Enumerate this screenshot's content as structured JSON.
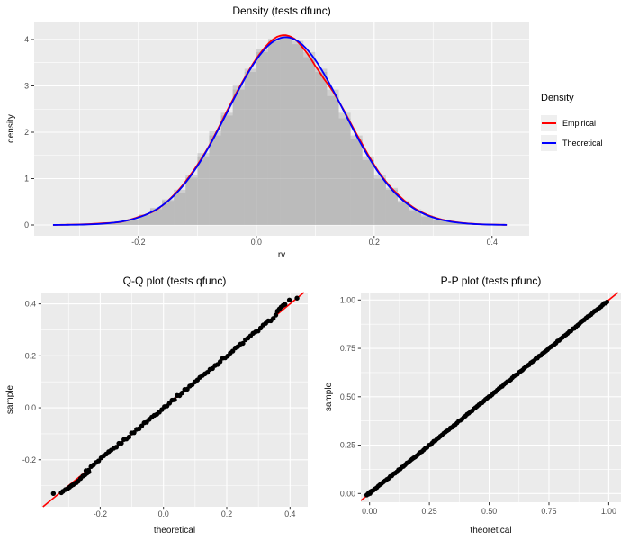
{
  "colors": {
    "page_bg": "#FFFFFF",
    "panel_bg": "#EBEBEB",
    "grid_major": "#FFFFFF",
    "grid_minor": "#FFFFFF",
    "tick_text": "#4D4D4D",
    "tick_mark": "#333333",
    "bar_fill": "#909090",
    "bar_opacity": 0.3,
    "empirical": "#FF0000",
    "theoretical": "#0000FF",
    "point": "#000000",
    "legend_key_bg": "#EFEFEF"
  },
  "chart_data": {
    "density": {
      "type": "histogram+line",
      "title": "Density (tests dfunc)",
      "xlabel": "rv",
      "ylabel": "density",
      "xlim": [
        -0.377,
        0.463
      ],
      "ylim": [
        -0.233,
        4.388
      ],
      "x_ticks": {
        "values": [
          -0.2,
          0.0,
          0.2,
          0.4
        ],
        "labels": [
          "-0.2",
          "0.0",
          "0.2",
          "0.4"
        ]
      },
      "y_ticks": {
        "values": [
          0,
          1,
          2,
          3,
          4
        ],
        "labels": [
          "0",
          "1",
          "2",
          "3",
          "4"
        ]
      },
      "x_minor": [
        -0.3,
        -0.1,
        0.1,
        0.3
      ],
      "y_minor": [
        0.5,
        1.5,
        2.5,
        3.5
      ],
      "histogram": {
        "bin_start": -0.34,
        "bin_width": 0.02,
        "empirical_heights": [
          0.005,
          0.01,
          0.02,
          0.02,
          0.05,
          0.08,
          0.11,
          0.23,
          0.37,
          0.55,
          0.7,
          1.02,
          1.55,
          2.02,
          2.36,
          3.02,
          3.3,
          3.8,
          4.02,
          4.08,
          3.9,
          3.62,
          3.3,
          2.78,
          2.3,
          1.85,
          1.4,
          1.0,
          0.8,
          0.48,
          0.3,
          0.18,
          0.11,
          0.06,
          0.05,
          0.02,
          0.01,
          0.01
        ],
        "theoretical_heights": [
          0.003,
          0.005,
          0.01,
          0.02,
          0.04,
          0.07,
          0.13,
          0.21,
          0.34,
          0.52,
          0.76,
          1.08,
          1.48,
          1.93,
          2.42,
          2.92,
          3.37,
          3.73,
          3.97,
          4.05,
          3.97,
          3.73,
          3.37,
          2.92,
          2.42,
          1.93,
          1.48,
          1.08,
          0.76,
          0.52,
          0.34,
          0.21,
          0.13,
          0.07,
          0.04,
          0.02,
          0.01,
          0.005
        ]
      },
      "curves": [
        {
          "name": "Empirical",
          "color": "#FF0000",
          "mean": 0.05,
          "sd": 0.0985,
          "peak": 4.05,
          "range": [
            -0.345,
            0.425
          ],
          "offsets": [
            [
              -0.345,
              0.0
            ],
            [
              -0.3,
              0.004
            ],
            [
              -0.26,
              0.01
            ],
            [
              -0.23,
              -0.006
            ],
            [
              -0.2,
              0.012
            ],
            [
              -0.17,
              -0.012
            ],
            [
              -0.14,
              0.015
            ],
            [
              -0.11,
              0.03
            ],
            [
              -0.08,
              0.015
            ],
            [
              -0.05,
              0.035
            ],
            [
              -0.02,
              0.02
            ],
            [
              0.01,
              0.03
            ],
            [
              0.035,
              0.055
            ],
            [
              0.05,
              0.045
            ],
            [
              0.065,
              0.01
            ],
            [
              0.08,
              -0.06
            ],
            [
              0.1,
              -0.13
            ],
            [
              0.115,
              -0.11
            ],
            [
              0.13,
              -0.03
            ],
            [
              0.15,
              0.02
            ],
            [
              0.18,
              0.04
            ],
            [
              0.21,
              0.02
            ],
            [
              0.24,
              0.03
            ],
            [
              0.27,
              0.015
            ],
            [
              0.3,
              0.01
            ],
            [
              0.34,
              0.005
            ],
            [
              0.38,
              0.002
            ],
            [
              0.425,
              0.0
            ]
          ]
        },
        {
          "name": "Theoretical",
          "color": "#0000FF",
          "mean": 0.05,
          "sd": 0.0985,
          "peak": 4.05,
          "range": [
            -0.345,
            0.425
          ]
        }
      ],
      "legend": {
        "title": "Density",
        "items": [
          {
            "label": "Empirical",
            "color": "#FF0000"
          },
          {
            "label": "Theoretical",
            "color": "#0000FF"
          }
        ]
      }
    },
    "qq": {
      "type": "scatter",
      "title": "Q-Q plot (tests qfunc)",
      "xlabel": "theoretical",
      "ylabel": "sample",
      "xlim": [
        -0.386,
        0.456
      ],
      "ylim": [
        -0.381,
        0.4437
      ],
      "x_ticks": {
        "values": [
          -0.2,
          0.0,
          0.2,
          0.4
        ],
        "labels": [
          "-0.2",
          "0.0",
          "0.2",
          "0.4"
        ]
      },
      "y_ticks": {
        "values": [
          -0.2,
          0.0,
          0.2,
          0.4
        ],
        "labels": [
          "-0.2",
          "0.0",
          "0.2",
          "0.4"
        ]
      },
      "x_minor": [
        -0.3,
        -0.1,
        0.1,
        0.3
      ],
      "y_minor": [
        -0.3,
        -0.1,
        0.1,
        0.3
      ],
      "abline": {
        "slope": 1,
        "intercept": 0,
        "color": "#FF0000",
        "width": 1.6
      },
      "points": {
        "color": "#000000",
        "radius": 2.7,
        "band": {
          "from": -0.245,
          "to": 0.36,
          "step": 0.008,
          "jitter": 0.0045
        },
        "extra": [
          [
            -0.348,
            -0.33
          ],
          [
            -0.323,
            -0.327
          ],
          [
            -0.318,
            -0.322
          ],
          [
            -0.31,
            -0.315
          ],
          [
            -0.303,
            -0.312
          ],
          [
            -0.297,
            -0.306
          ],
          [
            -0.291,
            -0.3
          ],
          [
            -0.285,
            -0.296
          ],
          [
            -0.28,
            -0.291
          ],
          [
            -0.275,
            -0.288
          ],
          [
            -0.27,
            -0.283
          ],
          [
            -0.262,
            -0.272
          ],
          [
            -0.255,
            -0.263
          ],
          [
            -0.248,
            -0.258
          ],
          [
            -0.242,
            -0.252
          ],
          [
            -0.236,
            -0.247
          ],
          [
            0.36,
            0.372
          ],
          [
            0.366,
            0.38
          ],
          [
            0.372,
            0.388
          ],
          [
            0.378,
            0.394
          ],
          [
            0.384,
            0.398
          ],
          [
            0.398,
            0.415
          ],
          [
            0.422,
            0.422
          ]
        ]
      }
    },
    "pp": {
      "type": "scatter",
      "title": "P-P plot (tests pfunc)",
      "xlabel": "theoretical",
      "ylabel": "sample",
      "xlim": [
        -0.0365,
        1.0512
      ],
      "ylim": [
        -0.0451,
        1.0386
      ],
      "x_ticks": {
        "values": [
          0.0,
          0.25,
          0.5,
          0.75,
          1.0
        ],
        "labels": [
          "0.00",
          "0.25",
          "0.50",
          "0.75",
          "1.00"
        ]
      },
      "y_ticks": {
        "values": [
          0.0,
          0.25,
          0.5,
          0.75,
          1.0
        ],
        "labels": [
          "0.00",
          "0.25",
          "0.50",
          "0.75",
          "1.00"
        ]
      },
      "x_minor": [
        0.125,
        0.375,
        0.625,
        0.875
      ],
      "y_minor": [
        0.125,
        0.375,
        0.625,
        0.875
      ],
      "abline": {
        "slope": 1,
        "intercept": 0,
        "color": "#FF0000",
        "width": 1.6
      },
      "points": {
        "color": "#000000",
        "radius": 2.6,
        "band": {
          "from": -0.005,
          "to": 0.985,
          "step": 0.007,
          "jitter": 0.0025
        },
        "extra": [
          [
            -0.012,
            -0.008
          ],
          [
            -0.006,
            0.0
          ],
          [
            0.0,
            0.006
          ],
          [
            0.005,
            0.011
          ],
          [
            0.01,
            0.014
          ],
          [
            0.988,
            0.984
          ],
          [
            0.993,
            0.99
          ]
        ]
      }
    }
  }
}
